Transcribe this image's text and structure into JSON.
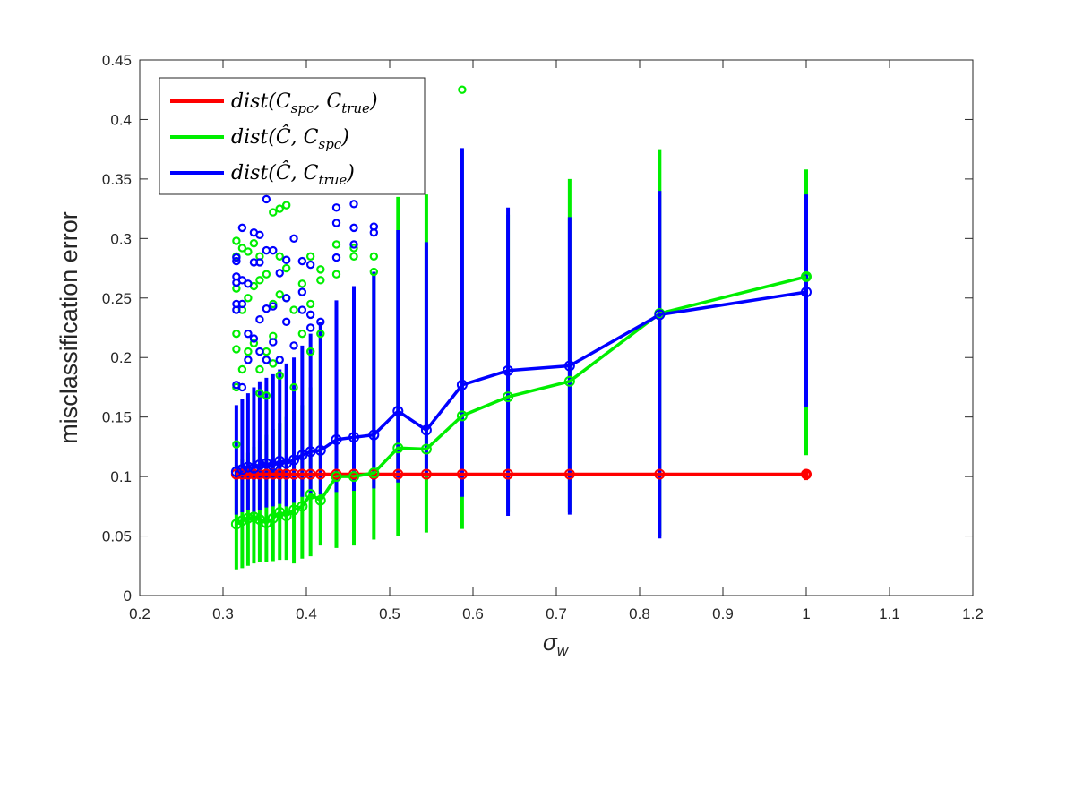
{
  "chart_data": {
    "type": "line",
    "xlabel": "σ_w",
    "xlabel_main": "σ",
    "xlabel_sub": "w",
    "ylabel": "misclassification error",
    "xlim": [
      0.2,
      1.2
    ],
    "ylim": [
      0,
      0.45
    ],
    "xticks": [
      "0.2",
      "0.3",
      "0.4",
      "0.5",
      "0.6",
      "0.7",
      "0.8",
      "0.9",
      "1",
      "1.1",
      "1.2"
    ],
    "yticks": [
      "0",
      "0.05",
      "0.1",
      "0.15",
      "0.2",
      "0.25",
      "0.3",
      "0.35",
      "0.4",
      "0.45"
    ],
    "grid": false,
    "legend_position": "top-left",
    "x": [
      0.316,
      0.323,
      0.33,
      0.337,
      0.344,
      0.352,
      0.36,
      0.368,
      0.376,
      0.385,
      0.395,
      0.405,
      0.417,
      0.436,
      0.457,
      0.481,
      0.51,
      0.544,
      0.587,
      0.642,
      0.716,
      0.824,
      1.0
    ],
    "series": [
      {
        "name": "dist(C_spc, C_true)",
        "legend_parts": [
          [
            "dist(C",
            ""
          ],
          [
            "spc",
            "sub"
          ],
          [
            ", C",
            ""
          ],
          [
            "true",
            "sub"
          ],
          [
            ")",
            ""
          ]
        ],
        "color": "#ff0000",
        "values": [
          0.102,
          0.102,
          0.102,
          0.102,
          0.102,
          0.102,
          0.102,
          0.102,
          0.102,
          0.102,
          0.102,
          0.102,
          0.102,
          0.102,
          0.102,
          0.102,
          0.102,
          0.102,
          0.102,
          0.102,
          0.102,
          0.102,
          0.102
        ],
        "low": [
          0.097,
          0.097,
          0.097,
          0.097,
          0.097,
          0.097,
          0.097,
          0.097,
          0.097,
          0.097,
          0.097,
          0.097,
          0.097,
          0.097,
          0.097,
          0.097,
          0.097,
          0.097,
          0.097,
          0.097,
          0.097,
          0.097,
          0.097
        ],
        "high": [
          0.106,
          0.106,
          0.106,
          0.106,
          0.106,
          0.106,
          0.106,
          0.106,
          0.106,
          0.106,
          0.106,
          0.106,
          0.106,
          0.106,
          0.106,
          0.106,
          0.106,
          0.106,
          0.106,
          0.106,
          0.106,
          0.106,
          0.106
        ],
        "outliers": [
          [
            1.0,
            0.102
          ]
        ]
      },
      {
        "name": "dist(Ĉ, C_spc)",
        "legend_parts": [
          [
            "dist(Ĉ, C",
            ""
          ],
          [
            "spc",
            "sub"
          ],
          [
            ")",
            ""
          ]
        ],
        "color": "#00ee00",
        "values": [
          0.06,
          0.063,
          0.065,
          0.066,
          0.064,
          0.061,
          0.065,
          0.07,
          0.067,
          0.072,
          0.075,
          0.085,
          0.08,
          0.1,
          0.1,
          0.103,
          0.124,
          0.123,
          0.151,
          0.167,
          0.18,
          0.237,
          0.268
        ],
        "low": [
          0.022,
          0.023,
          0.025,
          0.027,
          0.028,
          0.028,
          0.029,
          0.03,
          0.03,
          0.027,
          0.031,
          0.033,
          0.042,
          0.04,
          0.042,
          0.047,
          0.05,
          0.053,
          0.056,
          0.07,
          0.07,
          0.05,
          0.118
        ],
        "high": [
          0.11,
          0.115,
          0.12,
          0.125,
          0.13,
          0.135,
          0.14,
          0.145,
          0.15,
          0.155,
          0.16,
          0.175,
          0.22,
          0.24,
          0.25,
          0.27,
          0.335,
          0.337,
          0.375,
          0.32,
          0.35,
          0.375,
          0.358
        ],
        "outliers": [
          [
            0.316,
            0.298
          ],
          [
            0.316,
            0.285
          ],
          [
            0.316,
            0.258
          ],
          [
            0.316,
            0.22
          ],
          [
            0.316,
            0.207
          ],
          [
            0.316,
            0.175
          ],
          [
            0.316,
            0.127
          ],
          [
            0.323,
            0.292
          ],
          [
            0.323,
            0.24
          ],
          [
            0.323,
            0.19
          ],
          [
            0.33,
            0.289
          ],
          [
            0.33,
            0.25
          ],
          [
            0.33,
            0.205
          ],
          [
            0.337,
            0.296
          ],
          [
            0.337,
            0.26
          ],
          [
            0.337,
            0.212
          ],
          [
            0.344,
            0.285
          ],
          [
            0.344,
            0.265
          ],
          [
            0.344,
            0.19
          ],
          [
            0.344,
            0.17
          ],
          [
            0.352,
            0.27
          ],
          [
            0.352,
            0.205
          ],
          [
            0.352,
            0.168
          ],
          [
            0.36,
            0.322
          ],
          [
            0.36,
            0.245
          ],
          [
            0.36,
            0.218
          ],
          [
            0.36,
            0.195
          ],
          [
            0.368,
            0.325
          ],
          [
            0.368,
            0.285
          ],
          [
            0.368,
            0.253
          ],
          [
            0.368,
            0.185
          ],
          [
            0.376,
            0.328
          ],
          [
            0.376,
            0.275
          ],
          [
            0.376,
            0.25
          ],
          [
            0.385,
            0.24
          ],
          [
            0.385,
            0.175
          ],
          [
            0.395,
            0.262
          ],
          [
            0.395,
            0.22
          ],
          [
            0.405,
            0.285
          ],
          [
            0.405,
            0.245
          ],
          [
            0.405,
            0.205
          ],
          [
            0.417,
            0.274
          ],
          [
            0.417,
            0.265
          ],
          [
            0.417,
            0.22
          ],
          [
            0.436,
            0.295
          ],
          [
            0.436,
            0.27
          ],
          [
            0.457,
            0.292
          ],
          [
            0.457,
            0.285
          ],
          [
            0.481,
            0.285
          ],
          [
            0.481,
            0.272
          ],
          [
            0.587,
            0.425
          ],
          [
            1.0,
            0.268
          ]
        ]
      },
      {
        "name": "dist(Ĉ, C_true)",
        "legend_parts": [
          [
            "dist(Ĉ, C",
            ""
          ],
          [
            "true",
            "sub"
          ],
          [
            ")",
            ""
          ]
        ],
        "color": "#0000ff",
        "values": [
          0.104,
          0.106,
          0.108,
          0.107,
          0.11,
          0.111,
          0.109,
          0.113,
          0.111,
          0.114,
          0.118,
          0.121,
          0.122,
          0.131,
          0.133,
          0.135,
          0.155,
          0.139,
          0.177,
          0.189,
          0.193,
          0.236,
          0.255
        ],
        "low": [
          0.068,
          0.07,
          0.072,
          0.07,
          0.072,
          0.074,
          0.075,
          0.077,
          0.075,
          0.078,
          0.083,
          0.085,
          0.085,
          0.087,
          0.088,
          0.09,
          0.095,
          0.1,
          0.083,
          0.067,
          0.068,
          0.048,
          0.158
        ],
        "high": [
          0.16,
          0.165,
          0.17,
          0.175,
          0.18,
          0.183,
          0.186,
          0.19,
          0.195,
          0.2,
          0.21,
          0.22,
          0.23,
          0.248,
          0.26,
          0.272,
          0.307,
          0.297,
          0.376,
          0.326,
          0.318,
          0.34,
          0.337
        ],
        "outliers": [
          [
            0.316,
            0.284
          ],
          [
            0.316,
            0.281
          ],
          [
            0.316,
            0.268
          ],
          [
            0.316,
            0.263
          ],
          [
            0.316,
            0.245
          ],
          [
            0.316,
            0.24
          ],
          [
            0.316,
            0.177
          ],
          [
            0.323,
            0.309
          ],
          [
            0.323,
            0.265
          ],
          [
            0.323,
            0.245
          ],
          [
            0.323,
            0.175
          ],
          [
            0.33,
            0.262
          ],
          [
            0.33,
            0.22
          ],
          [
            0.33,
            0.198
          ],
          [
            0.337,
            0.305
          ],
          [
            0.337,
            0.28
          ],
          [
            0.337,
            0.216
          ],
          [
            0.344,
            0.303
          ],
          [
            0.344,
            0.28
          ],
          [
            0.344,
            0.232
          ],
          [
            0.344,
            0.205
          ],
          [
            0.352,
            0.333
          ],
          [
            0.352,
            0.29
          ],
          [
            0.352,
            0.241
          ],
          [
            0.352,
            0.198
          ],
          [
            0.36,
            0.29
          ],
          [
            0.36,
            0.243
          ],
          [
            0.36,
            0.213
          ],
          [
            0.368,
            0.271
          ],
          [
            0.368,
            0.198
          ],
          [
            0.376,
            0.282
          ],
          [
            0.376,
            0.25
          ],
          [
            0.376,
            0.23
          ],
          [
            0.385,
            0.3
          ],
          [
            0.385,
            0.21
          ],
          [
            0.395,
            0.281
          ],
          [
            0.395,
            0.255
          ],
          [
            0.395,
            0.24
          ],
          [
            0.405,
            0.278
          ],
          [
            0.405,
            0.236
          ],
          [
            0.405,
            0.225
          ],
          [
            0.417,
            0.23
          ],
          [
            0.436,
            0.326
          ],
          [
            0.436,
            0.313
          ],
          [
            0.436,
            0.284
          ],
          [
            0.457,
            0.329
          ],
          [
            0.457,
            0.309
          ],
          [
            0.457,
            0.295
          ],
          [
            0.481,
            0.31
          ],
          [
            0.481,
            0.305
          ]
        ]
      }
    ]
  }
}
